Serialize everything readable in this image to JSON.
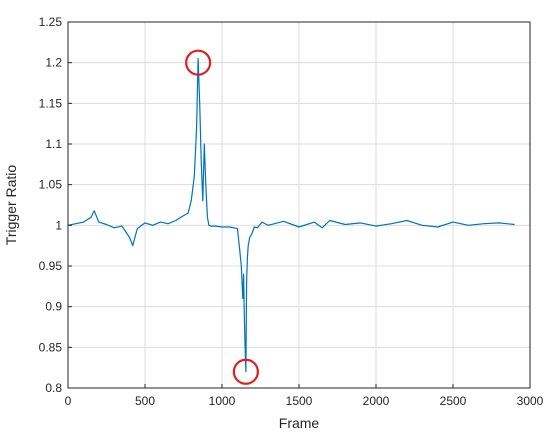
{
  "chart_data": {
    "type": "line",
    "title": "",
    "xlabel": "Frame",
    "ylabel": "Trigger Ratio",
    "xlim": [
      0,
      3000
    ],
    "ylim": [
      0.8,
      1.25
    ],
    "xticks": [
      0,
      500,
      1000,
      1500,
      2000,
      2500,
      3000
    ],
    "xtick_labels": [
      "0",
      "500",
      "1000",
      "1500",
      "2000",
      "2500",
      "3000"
    ],
    "yticks": [
      0.8,
      0.85,
      0.9,
      0.95,
      1.0,
      1.05,
      1.1,
      1.15,
      1.2,
      1.25
    ],
    "ytick_labels": [
      "0.8",
      "0.85",
      "0.9",
      "0.95",
      "1",
      "1.05",
      "1.1",
      "1.15",
      "1.2",
      "1.25"
    ],
    "grid": true,
    "line_color": "#0072BD",
    "marker_color": "#e02020",
    "series": [
      {
        "x": [
          0,
          50,
          100,
          150,
          170,
          200,
          250,
          300,
          350,
          400,
          420,
          450,
          500,
          550,
          600,
          650,
          700,
          750,
          780,
          800,
          820,
          835,
          845,
          855,
          865,
          875,
          885,
          895,
          905,
          915,
          930,
          960,
          1000,
          1050,
          1100,
          1115,
          1125,
          1135,
          1140,
          1145,
          1150,
          1155,
          1160,
          1165,
          1170,
          1180,
          1195,
          1210,
          1230,
          1260,
          1300,
          1400,
          1500,
          1600,
          1650,
          1700,
          1800,
          1900,
          2000,
          2100,
          2200,
          2300,
          2400,
          2500,
          2600,
          2700,
          2800,
          2900
        ],
        "y": [
          1.0,
          1.002,
          1.004,
          1.01,
          1.018,
          1.004,
          1.001,
          0.997,
          0.999,
          0.985,
          0.975,
          0.996,
          1.003,
          1.0,
          1.004,
          1.002,
          1.006,
          1.012,
          1.015,
          1.03,
          1.06,
          1.12,
          1.205,
          1.15,
          1.08,
          1.03,
          1.1,
          1.05,
          1.01,
          1.0,
          0.999,
          0.999,
          0.998,
          0.998,
          0.996,
          0.97,
          0.95,
          0.91,
          0.94,
          0.89,
          0.85,
          0.82,
          0.93,
          0.96,
          0.975,
          0.985,
          0.99,
          0.998,
          0.997,
          1.004,
          1.0,
          1.005,
          0.998,
          1.004,
          0.997,
          1.006,
          1.001,
          1.003,
          0.999,
          1.002,
          1.006,
          1.0,
          0.998,
          1.004,
          1.0,
          1.002,
          1.003,
          1.001
        ]
      }
    ],
    "annotations": [
      {
        "shape": "circle",
        "x": 845,
        "y": 1.2
      },
      {
        "shape": "circle",
        "x": 1155,
        "y": 0.82
      }
    ]
  }
}
